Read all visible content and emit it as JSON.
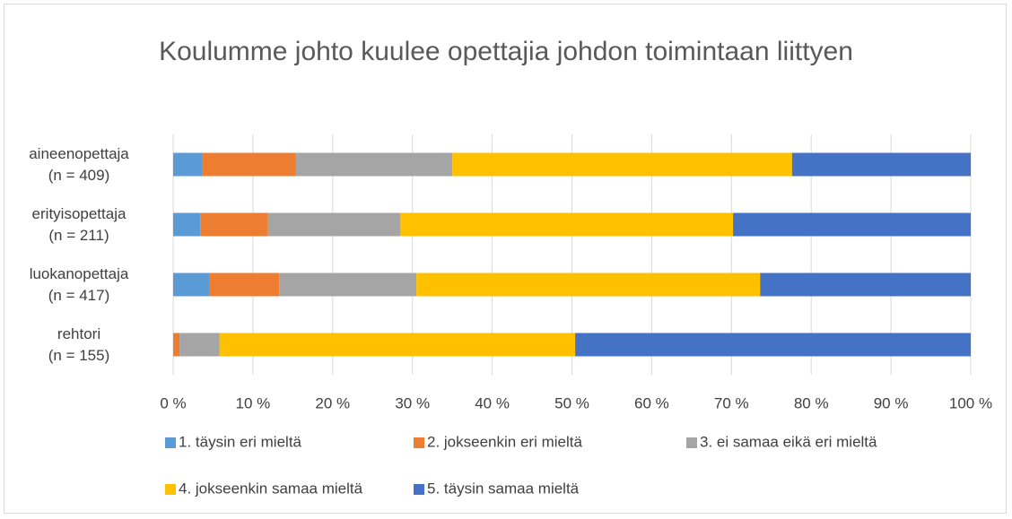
{
  "chart_data": {
    "type": "stacked_barh",
    "title": "Koulumme johto kuulee opettajia johdon toimintaan liittyen",
    "categories": [
      "aineenopettaja\n(n = 409)",
      "erityisopettaja\n(n = 211)",
      "luokanopettaja\n(n = 417)",
      "rehtori\n(n = 155)"
    ],
    "series": [
      {
        "name": "1. täysin eri mieltä",
        "color": "#5b9bd5",
        "values": [
          3.7,
          3.4,
          4.6,
          0
        ]
      },
      {
        "name": "2. jokseenkin eri mieltä",
        "color": "#ed7d31",
        "values": [
          11.7,
          8.5,
          8.7,
          0.8
        ]
      },
      {
        "name": "3. ei samaa eikä eri mieltä",
        "color": "#a5a5a5",
        "values": [
          19.6,
          16.6,
          17.2,
          5.0
        ]
      },
      {
        "name": "4. jokseenkin samaa mieltä",
        "color": "#ffc000",
        "values": [
          42.6,
          41.7,
          43.1,
          44.6
        ]
      },
      {
        "name": "5. täysin samaa mieltä",
        "color": "#4472c4",
        "values": [
          22.4,
          29.8,
          26.4,
          49.6
        ]
      }
    ],
    "xlim": [
      0,
      100
    ],
    "xticks": [
      {
        "value": 0,
        "label": "0 %"
      },
      {
        "value": 10,
        "label": "10 %"
      },
      {
        "value": 20,
        "label": "20 %"
      },
      {
        "value": 30,
        "label": "30 %"
      },
      {
        "value": 40,
        "label": "40 %"
      },
      {
        "value": 50,
        "label": "50 %"
      },
      {
        "value": 60,
        "label": "60 %"
      },
      {
        "value": 70,
        "label": "70 %"
      },
      {
        "value": 80,
        "label": "80 %"
      },
      {
        "value": 90,
        "label": "90 %"
      },
      {
        "value": 100,
        "label": "100 %"
      }
    ],
    "grid": true,
    "legend": "bottom"
  }
}
